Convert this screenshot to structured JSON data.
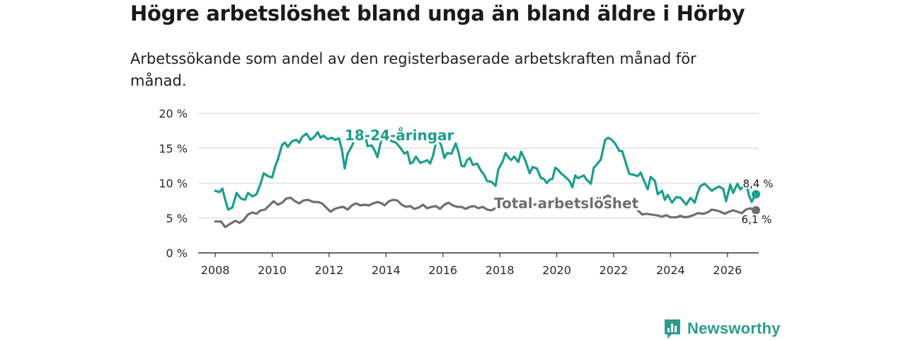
{
  "title": "Högre arbetslöshet bland unga än bland äldre i Hörby",
  "subtitle": "Arbetssökande som andel av den registerbaserade arbetskraften månad för månad.",
  "brand": {
    "name": "Newsworthy",
    "color": "#2d9c8e",
    "icon": "newsworthy-chart-icon"
  },
  "chart_data": {
    "type": "line",
    "ylim": [
      0,
      20
    ],
    "xlim": [
      2007.4,
      2027.1
    ],
    "y_ticks": [
      0,
      5,
      10,
      15,
      20
    ],
    "y_tick_labels": [
      "0 %",
      "5 %",
      "10 %",
      "15 %",
      "20 %"
    ],
    "x_ticks": [
      2008,
      2010,
      2012,
      2014,
      2016,
      2018,
      2020,
      2022,
      2024,
      2026
    ],
    "x_tick_labels": [
      "2008",
      "2010",
      "2012",
      "2014",
      "2016",
      "2018",
      "2020",
      "2022",
      "2024",
      "2026"
    ],
    "grid": true,
    "series": [
      {
        "name": "18-24-åringar",
        "color": "#1a9e8f",
        "end_label": "8,4 %",
        "points": [
          [
            2008.0,
            8.9
          ],
          [
            2008.15,
            8.7
          ],
          [
            2008.25,
            9.2
          ],
          [
            2008.35,
            7.6
          ],
          [
            2008.45,
            6.2
          ],
          [
            2008.6,
            6.5
          ],
          [
            2008.75,
            8.6
          ],
          [
            2008.9,
            7.8
          ],
          [
            2009.05,
            7.6
          ],
          [
            2009.15,
            8.6
          ],
          [
            2009.3,
            8.1
          ],
          [
            2009.45,
            8.4
          ],
          [
            2009.6,
            10.0
          ],
          [
            2009.7,
            11.4
          ],
          [
            2009.85,
            11.0
          ],
          [
            2010.0,
            10.8
          ],
          [
            2010.1,
            12.3
          ],
          [
            2010.2,
            13.4
          ],
          [
            2010.35,
            15.5
          ],
          [
            2010.45,
            15.8
          ],
          [
            2010.55,
            15.2
          ],
          [
            2010.7,
            16.0
          ],
          [
            2010.85,
            16.2
          ],
          [
            2010.95,
            15.8
          ],
          [
            2011.05,
            16.6
          ],
          [
            2011.2,
            17.1
          ],
          [
            2011.35,
            16.2
          ],
          [
            2011.5,
            16.7
          ],
          [
            2011.6,
            17.3
          ],
          [
            2011.7,
            16.5
          ],
          [
            2011.8,
            16.8
          ],
          [
            2011.95,
            16.3
          ],
          [
            2012.1,
            16.5
          ],
          [
            2012.2,
            16.2
          ],
          [
            2012.35,
            16.4
          ],
          [
            2012.45,
            14.8
          ],
          [
            2012.55,
            12.1
          ],
          [
            2012.65,
            14.2
          ],
          [
            2012.8,
            15.3
          ],
          [
            2012.95,
            16.8
          ],
          [
            2013.05,
            16.1
          ],
          [
            2013.15,
            16.0
          ],
          [
            2013.25,
            17.3
          ],
          [
            2013.35,
            15.3
          ],
          [
            2013.5,
            15.4
          ],
          [
            2013.6,
            14.7
          ],
          [
            2013.7,
            13.7
          ],
          [
            2013.8,
            15.6
          ],
          [
            2013.95,
            17.5
          ],
          [
            2014.05,
            16.6
          ],
          [
            2014.2,
            16.0
          ],
          [
            2014.35,
            15.8
          ],
          [
            2014.5,
            15.1
          ],
          [
            2014.65,
            14.2
          ],
          [
            2014.75,
            14.5
          ],
          [
            2014.85,
            12.8
          ],
          [
            2014.95,
            13.0
          ],
          [
            2015.05,
            13.8
          ],
          [
            2015.2,
            12.9
          ],
          [
            2015.35,
            13.1
          ],
          [
            2015.45,
            13.3
          ],
          [
            2015.55,
            12.8
          ],
          [
            2015.65,
            13.9
          ],
          [
            2015.75,
            15.7
          ],
          [
            2015.85,
            16.2
          ],
          [
            2015.95,
            15.3
          ],
          [
            2016.05,
            13.6
          ],
          [
            2016.15,
            14.3
          ],
          [
            2016.3,
            14.2
          ],
          [
            2016.45,
            15.7
          ],
          [
            2016.55,
            14.4
          ],
          [
            2016.65,
            12.5
          ],
          [
            2016.75,
            12.4
          ],
          [
            2016.85,
            13.3
          ],
          [
            2016.95,
            13.6
          ],
          [
            2017.05,
            12.6
          ],
          [
            2017.2,
            12.8
          ],
          [
            2017.35,
            11.7
          ],
          [
            2017.45,
            11.2
          ],
          [
            2017.55,
            10.3
          ],
          [
            2017.7,
            10.2
          ],
          [
            2017.85,
            9.6
          ],
          [
            2017.95,
            12.0
          ],
          [
            2018.1,
            13.1
          ],
          [
            2018.2,
            14.3
          ],
          [
            2018.3,
            13.7
          ],
          [
            2018.4,
            13.3
          ],
          [
            2018.5,
            13.8
          ],
          [
            2018.65,
            13.0
          ],
          [
            2018.75,
            14.5
          ],
          [
            2018.9,
            13.2
          ],
          [
            2019.05,
            11.4
          ],
          [
            2019.15,
            12.3
          ],
          [
            2019.3,
            12.1
          ],
          [
            2019.45,
            10.7
          ],
          [
            2019.55,
            10.6
          ],
          [
            2019.65,
            10.0
          ],
          [
            2019.75,
            10.5
          ],
          [
            2019.85,
            10.6
          ],
          [
            2019.95,
            12.2
          ],
          [
            2020.05,
            11.9
          ],
          [
            2020.15,
            11.4
          ],
          [
            2020.3,
            10.9
          ],
          [
            2020.45,
            10.3
          ],
          [
            2020.55,
            9.4
          ],
          [
            2020.65,
            11.1
          ],
          [
            2020.75,
            10.7
          ],
          [
            2020.85,
            10.9
          ],
          [
            2020.95,
            11.1
          ],
          [
            2021.05,
            10.5
          ],
          [
            2021.2,
            9.9
          ],
          [
            2021.3,
            12.2
          ],
          [
            2021.4,
            12.6
          ],
          [
            2021.55,
            13.4
          ],
          [
            2021.7,
            16.2
          ],
          [
            2021.8,
            16.5
          ],
          [
            2021.9,
            16.3
          ],
          [
            2022.05,
            15.7
          ],
          [
            2022.2,
            14.6
          ],
          [
            2022.3,
            14.6
          ],
          [
            2022.45,
            12.6
          ],
          [
            2022.55,
            11.3
          ],
          [
            2022.7,
            11.2
          ],
          [
            2022.85,
            11.0
          ],
          [
            2022.95,
            11.5
          ],
          [
            2023.05,
            10.5
          ],
          [
            2023.2,
            9.1
          ],
          [
            2023.3,
            10.9
          ],
          [
            2023.45,
            10.3
          ],
          [
            2023.55,
            8.4
          ],
          [
            2023.7,
            8.9
          ],
          [
            2023.8,
            7.6
          ],
          [
            2023.9,
            8.3
          ],
          [
            2024.05,
            7.2
          ],
          [
            2024.2,
            8.0
          ],
          [
            2024.35,
            7.9
          ],
          [
            2024.45,
            7.4
          ],
          [
            2024.55,
            6.9
          ],
          [
            2024.7,
            7.9
          ],
          [
            2024.85,
            7.2
          ],
          [
            2024.95,
            8.6
          ],
          [
            2025.05,
            9.6
          ],
          [
            2025.2,
            9.9
          ],
          [
            2025.35,
            9.3
          ],
          [
            2025.45,
            8.9
          ],
          [
            2025.55,
            9.2
          ],
          [
            2025.7,
            9.5
          ],
          [
            2025.85,
            9.2
          ],
          [
            2025.95,
            7.4
          ],
          [
            2026.1,
            9.8
          ],
          [
            2026.2,
            8.6
          ],
          [
            2026.35,
            9.9
          ],
          [
            2026.45,
            9.1
          ],
          [
            2026.55,
            9.5
          ],
          [
            2026.65,
            10.2
          ],
          [
            2026.75,
            8.3
          ],
          [
            2026.85,
            7.3
          ],
          [
            2026.95,
            8.1
          ],
          [
            2027.0,
            8.4
          ]
        ]
      },
      {
        "name": "Total arbetslöshet",
        "color": "#6e6e73",
        "end_label": "6,1 %",
        "points": [
          [
            2008.0,
            4.5
          ],
          [
            2008.2,
            4.5
          ],
          [
            2008.35,
            3.7
          ],
          [
            2008.5,
            4.1
          ],
          [
            2008.7,
            4.6
          ],
          [
            2008.85,
            4.3
          ],
          [
            2009.0,
            4.7
          ],
          [
            2009.15,
            5.5
          ],
          [
            2009.3,
            5.8
          ],
          [
            2009.45,
            5.6
          ],
          [
            2009.6,
            6.1
          ],
          [
            2009.75,
            6.2
          ],
          [
            2009.9,
            6.8
          ],
          [
            2010.05,
            7.4
          ],
          [
            2010.2,
            6.9
          ],
          [
            2010.35,
            7.2
          ],
          [
            2010.5,
            7.8
          ],
          [
            2010.65,
            7.9
          ],
          [
            2010.8,
            7.4
          ],
          [
            2010.95,
            7.1
          ],
          [
            2011.1,
            7.5
          ],
          [
            2011.25,
            7.6
          ],
          [
            2011.45,
            7.3
          ],
          [
            2011.6,
            7.3
          ],
          [
            2011.75,
            7.1
          ],
          [
            2011.9,
            6.5
          ],
          [
            2012.05,
            5.9
          ],
          [
            2012.2,
            6.3
          ],
          [
            2012.35,
            6.5
          ],
          [
            2012.5,
            6.6
          ],
          [
            2012.65,
            6.2
          ],
          [
            2012.8,
            6.8
          ],
          [
            2012.95,
            7.1
          ],
          [
            2013.1,
            6.8
          ],
          [
            2013.25,
            6.9
          ],
          [
            2013.4,
            6.8
          ],
          [
            2013.55,
            7.1
          ],
          [
            2013.7,
            7.3
          ],
          [
            2013.85,
            7.1
          ],
          [
            2013.95,
            6.8
          ],
          [
            2014.1,
            7.4
          ],
          [
            2014.25,
            7.6
          ],
          [
            2014.4,
            7.5
          ],
          [
            2014.55,
            6.9
          ],
          [
            2014.7,
            6.6
          ],
          [
            2014.85,
            6.7
          ],
          [
            2015.0,
            6.3
          ],
          [
            2015.15,
            6.5
          ],
          [
            2015.3,
            6.9
          ],
          [
            2015.45,
            6.4
          ],
          [
            2015.6,
            6.6
          ],
          [
            2015.75,
            6.7
          ],
          [
            2015.9,
            6.3
          ],
          [
            2016.05,
            6.9
          ],
          [
            2016.2,
            7.2
          ],
          [
            2016.35,
            6.8
          ],
          [
            2016.5,
            6.6
          ],
          [
            2016.65,
            6.6
          ],
          [
            2016.8,
            6.3
          ],
          [
            2016.95,
            6.6
          ],
          [
            2017.1,
            6.7
          ],
          [
            2017.25,
            6.4
          ],
          [
            2017.4,
            6.6
          ],
          [
            2017.55,
            6.2
          ],
          [
            2017.7,
            6.1
          ],
          [
            2017.85,
            6.4
          ],
          [
            2018.0,
            6.5
          ],
          [
            2018.15,
            7.0
          ],
          [
            2018.3,
            6.6
          ],
          [
            2018.45,
            6.6
          ],
          [
            2018.6,
            7.1
          ],
          [
            2018.75,
            6.9
          ],
          [
            2018.9,
            6.7
          ],
          [
            2019.05,
            6.5
          ],
          [
            2019.2,
            6.9
          ],
          [
            2019.35,
            7.0
          ],
          [
            2019.5,
            6.7
          ],
          [
            2019.65,
            6.6
          ],
          [
            2019.8,
            6.9
          ],
          [
            2019.95,
            6.5
          ],
          [
            2020.1,
            6.8
          ],
          [
            2020.25,
            6.7
          ],
          [
            2020.45,
            6.6
          ],
          [
            2020.6,
            6.5
          ],
          [
            2020.75,
            6.9
          ],
          [
            2020.9,
            6.8
          ],
          [
            2021.05,
            6.4
          ],
          [
            2021.2,
            6.9
          ],
          [
            2021.35,
            7.1
          ],
          [
            2021.5,
            7.0
          ],
          [
            2021.65,
            7.9
          ],
          [
            2021.8,
            8.2
          ],
          [
            2021.95,
            7.9
          ],
          [
            2022.1,
            7.3
          ],
          [
            2022.25,
            6.9
          ],
          [
            2022.4,
            6.8
          ],
          [
            2022.55,
            6.5
          ],
          [
            2022.7,
            6.4
          ],
          [
            2022.85,
            6.1
          ],
          [
            2023.0,
            5.5
          ],
          [
            2023.15,
            5.6
          ],
          [
            2023.3,
            5.5
          ],
          [
            2023.5,
            5.4
          ],
          [
            2023.7,
            5.2
          ],
          [
            2023.85,
            5.4
          ],
          [
            2024.0,
            5.1
          ],
          [
            2024.2,
            5.1
          ],
          [
            2024.35,
            5.3
          ],
          [
            2024.5,
            5.1
          ],
          [
            2024.65,
            5.2
          ],
          [
            2024.8,
            5.4
          ],
          [
            2024.95,
            5.7
          ],
          [
            2025.15,
            5.6
          ],
          [
            2025.3,
            5.8
          ],
          [
            2025.45,
            6.2
          ],
          [
            2025.6,
            6.1
          ],
          [
            2025.75,
            5.9
          ],
          [
            2025.9,
            5.6
          ],
          [
            2026.05,
            5.9
          ],
          [
            2026.2,
            6.1
          ],
          [
            2026.35,
            5.9
          ],
          [
            2026.5,
            5.7
          ],
          [
            2026.65,
            6.2
          ],
          [
            2026.8,
            6.4
          ],
          [
            2026.95,
            6.1
          ],
          [
            2027.0,
            6.1
          ]
        ]
      }
    ]
  }
}
